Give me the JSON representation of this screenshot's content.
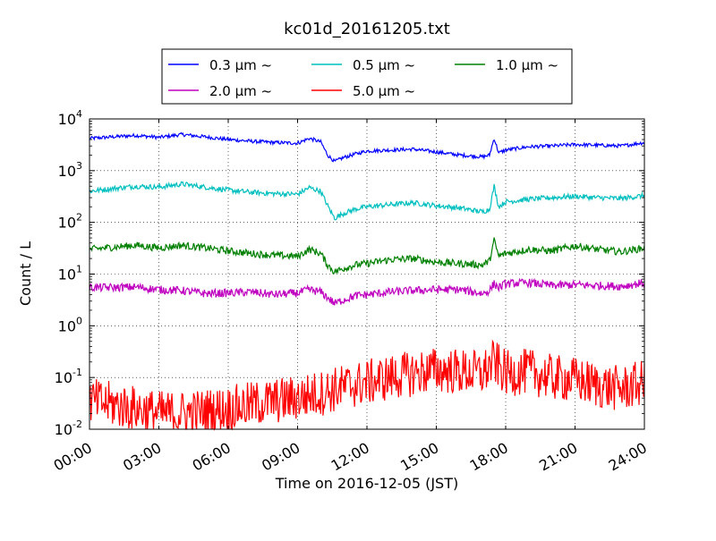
{
  "chart_data": {
    "type": "line",
    "title": "kc01d_20161205.txt",
    "xlabel": "Time on 2016-12-05 (JST)",
    "ylabel": "Count / L",
    "y_scale": "log",
    "ylim": [
      0.01,
      10000
    ],
    "x_ticks": [
      "00:00",
      "03:00",
      "06:00",
      "09:00",
      "12:00",
      "15:00",
      "18:00",
      "21:00",
      "24:00"
    ],
    "y_ticks": [
      {
        "base": "10",
        "exp": "-2",
        "value": 0.01
      },
      {
        "base": "10",
        "exp": "-1",
        "value": 0.1
      },
      {
        "base": "10",
        "exp": "0",
        "value": 1
      },
      {
        "base": "10",
        "exp": "1",
        "value": 10
      },
      {
        "base": "10",
        "exp": "2",
        "value": 100
      },
      {
        "base": "10",
        "exp": "3",
        "value": 1000
      },
      {
        "base": "10",
        "exp": "4",
        "value": 10000
      }
    ],
    "grid": true,
    "legend_position": "top-center, above plot",
    "series": [
      {
        "name": "0.3 μm ~",
        "color": "#0000ff",
        "x": [
          0,
          1,
          2,
          3,
          4,
          5,
          6,
          7,
          8,
          9,
          9.5,
          10,
          10.3,
          10.6,
          11,
          11.5,
          12,
          13,
          14,
          15,
          16,
          17,
          17.3,
          17.5,
          17.7,
          18,
          19,
          20,
          21,
          22,
          23,
          24
        ],
        "y": [
          4200,
          4500,
          4800,
          4400,
          5000,
          4500,
          4000,
          3700,
          3500,
          3400,
          4200,
          3600,
          2000,
          1500,
          1800,
          2100,
          2400,
          2500,
          2600,
          2300,
          2000,
          1850,
          2000,
          4200,
          2200,
          2500,
          2900,
          3000,
          3200,
          3100,
          3000,
          3500
        ]
      },
      {
        "name": "0.5 μm ~",
        "color": "#00bfbf",
        "x": [
          0,
          1,
          2,
          3,
          4,
          5,
          6,
          7,
          8,
          9,
          9.5,
          10,
          10.3,
          10.6,
          11,
          11.5,
          12,
          13,
          14,
          15,
          16,
          17,
          17.3,
          17.5,
          17.7,
          18,
          19,
          20,
          21,
          22,
          23,
          24
        ],
        "y": [
          400,
          450,
          500,
          480,
          550,
          480,
          420,
          380,
          360,
          350,
          470,
          400,
          210,
          120,
          150,
          180,
          200,
          220,
          240,
          210,
          190,
          160,
          180,
          500,
          200,
          250,
          280,
          300,
          320,
          300,
          290,
          330
        ]
      },
      {
        "name": "1.0 μm ~",
        "color": "#008000",
        "x": [
          0,
          1,
          2,
          3,
          4,
          5,
          6,
          7,
          8,
          9,
          9.5,
          10,
          10.3,
          10.6,
          11,
          11.5,
          12,
          13,
          14,
          15,
          16,
          17,
          17.3,
          17.5,
          17.7,
          18,
          19,
          20,
          21,
          22,
          23,
          24
        ],
        "y": [
          30,
          33,
          36,
          32,
          36,
          32,
          28,
          25,
          23,
          22,
          30,
          25,
          15,
          11,
          13,
          15,
          16,
          19,
          20,
          17,
          16,
          15,
          18,
          45,
          22,
          25,
          30,
          28,
          35,
          30,
          27,
          32
        ]
      },
      {
        "name": "2.0 μm ~",
        "color": "#bf00bf",
        "x": [
          0,
          1,
          2,
          3,
          4,
          5,
          6,
          7,
          8,
          9,
          9.5,
          10,
          10.3,
          10.6,
          11,
          11.5,
          12,
          13,
          14,
          15,
          16,
          17,
          17.3,
          17.5,
          17.7,
          18,
          19,
          20,
          21,
          22,
          23,
          24
        ],
        "y": [
          5.5,
          5.5,
          5.6,
          5,
          4.8,
          4.2,
          4.3,
          4.5,
          4,
          4.3,
          5,
          4.5,
          3.5,
          2.7,
          3.2,
          3.8,
          4,
          4.5,
          4.8,
          5,
          5,
          4.2,
          4.8,
          6.5,
          5.5,
          6.5,
          6.8,
          6,
          6.2,
          6,
          5.8,
          6.8
        ]
      },
      {
        "name": "5.0 μm ~",
        "color": "#ff0000",
        "x": [
          0,
          1,
          2,
          3,
          4,
          5,
          6,
          7,
          8,
          9,
          10,
          11,
          12,
          13,
          14,
          15,
          16,
          17,
          17.5,
          18,
          19,
          20,
          21,
          22,
          23,
          24
        ],
        "y": [
          0.035,
          0.03,
          0.025,
          0.02,
          0.02,
          0.022,
          0.025,
          0.03,
          0.035,
          0.04,
          0.05,
          0.065,
          0.08,
          0.1,
          0.12,
          0.14,
          0.13,
          0.12,
          0.2,
          0.12,
          0.13,
          0.1,
          0.09,
          0.07,
          0.06,
          0.08
        ]
      }
    ]
  }
}
